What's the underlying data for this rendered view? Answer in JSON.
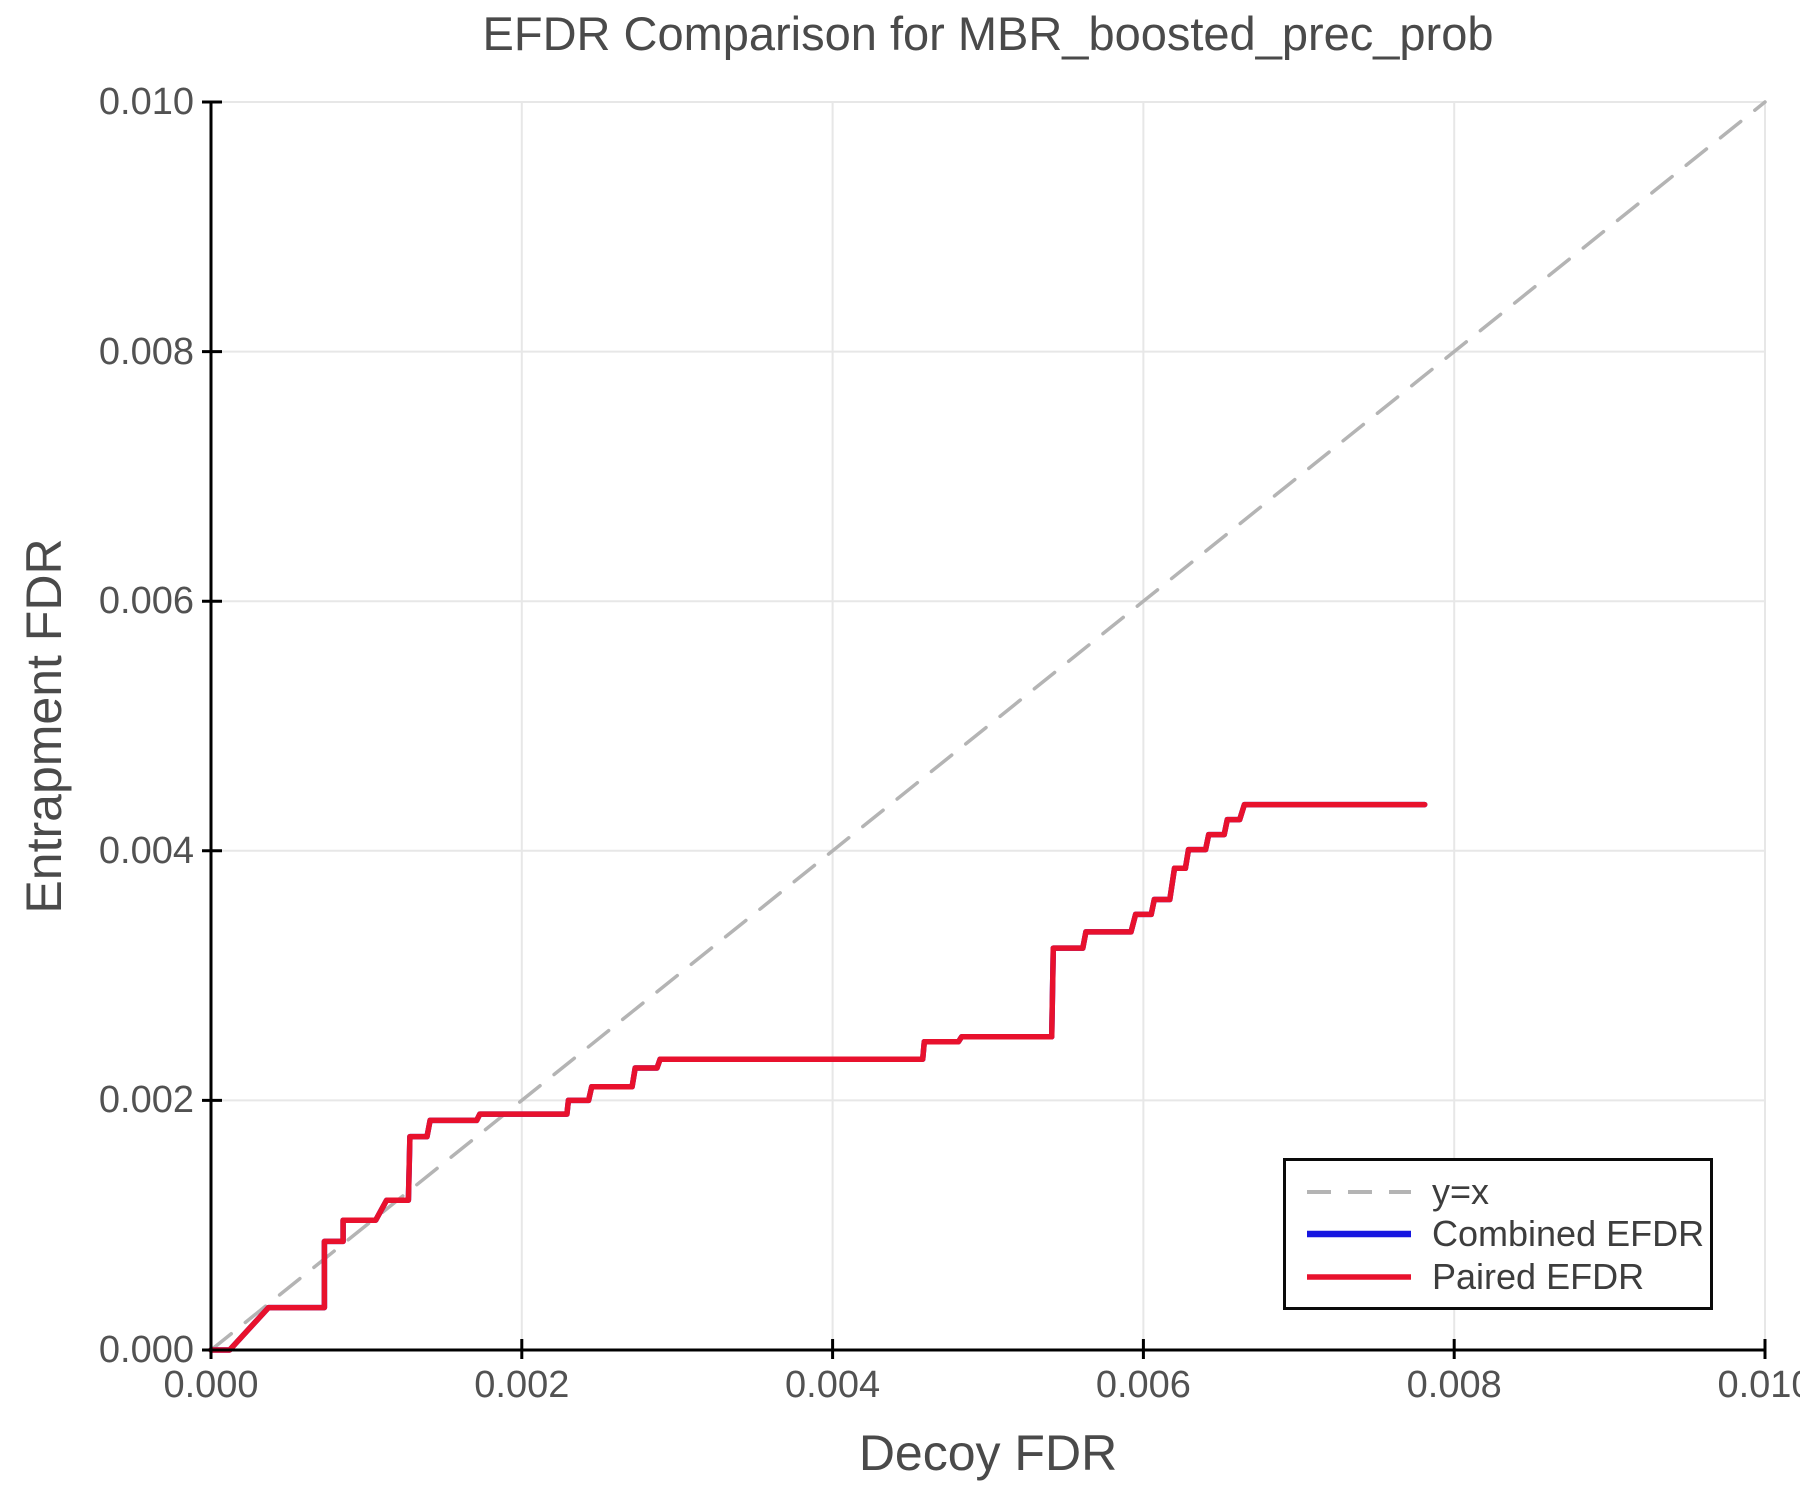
{
  "title": "EFDR Comparison for MBR_boosted_prec_prob",
  "axes": {
    "xlabel": "Decoy FDR",
    "ylabel": "Entrapment FDR"
  },
  "colors": {
    "identity_line": "#b4b4b4",
    "combined_efdr": "#1616e0",
    "paired_efdr": "#e8112d",
    "grid": "#e7e7e7",
    "spine": "#000000",
    "text": "#4a4a4a",
    "tick_text": "#525252"
  },
  "legend": {
    "items": [
      {
        "label": "y=x",
        "color": "#b4b4b4",
        "style": "dashed"
      },
      {
        "label": "Combined EFDR",
        "color": "#1616e0",
        "style": "solid"
      },
      {
        "label": "Paired EFDR",
        "color": "#e8112d",
        "style": "solid"
      }
    ]
  },
  "chart_data": {
    "type": "line",
    "title": "EFDR Comparison for MBR_boosted_prec_prob",
    "xlabel": "Decoy FDR",
    "ylabel": "Entrapment FDR",
    "xlim": [
      0.0,
      0.01
    ],
    "ylim": [
      0.0,
      0.01
    ],
    "grid": true,
    "legend_position": "lower right",
    "x_ticks": [
      0.0,
      0.002,
      0.004,
      0.006,
      0.008,
      0.01
    ],
    "y_ticks": [
      0.0,
      0.002,
      0.004,
      0.006,
      0.008,
      0.01
    ],
    "x_tick_labels": [
      "0.000",
      "0.002",
      "0.004",
      "0.006",
      "0.008",
      "0.010"
    ],
    "y_tick_labels": [
      "0.000",
      "0.002",
      "0.004",
      "0.006",
      "0.008",
      "0.010"
    ],
    "series": [
      {
        "name": "y=x",
        "style": "dashed",
        "color": "#b4b4b4",
        "line_width": 3.5,
        "points": [
          [
            0.0,
            0.0
          ],
          [
            0.01,
            0.01
          ]
        ]
      },
      {
        "name": "Combined EFDR",
        "style": "solid",
        "color": "#1616e0",
        "line_width": 5.5,
        "note": "not visibly distinct; coincides with Paired EFDR and is hidden beneath it",
        "points": [
          [
            0.0,
            0.0
          ],
          [
            0.00012,
            0.0
          ],
          [
            0.00037,
            0.00034
          ],
          [
            0.00073,
            0.00034
          ],
          [
            0.00073,
            0.00087
          ],
          [
            0.00085,
            0.00087
          ],
          [
            0.00085,
            0.00104
          ],
          [
            0.00106,
            0.00104
          ],
          [
            0.00113,
            0.0012
          ],
          [
            0.00127,
            0.0012
          ],
          [
            0.00128,
            0.00171
          ],
          [
            0.00139,
            0.00171
          ],
          [
            0.00141,
            0.00184
          ],
          [
            0.00171,
            0.00184
          ],
          [
            0.00173,
            0.00189
          ],
          [
            0.00229,
            0.00189
          ],
          [
            0.0023,
            0.002
          ],
          [
            0.00243,
            0.002
          ],
          [
            0.00245,
            0.00211
          ],
          [
            0.00271,
            0.00211
          ],
          [
            0.00273,
            0.00226
          ],
          [
            0.00287,
            0.00226
          ],
          [
            0.00289,
            0.00233
          ],
          [
            0.00458,
            0.00233
          ],
          [
            0.00459,
            0.00247
          ],
          [
            0.00481,
            0.00247
          ],
          [
            0.00483,
            0.00251
          ],
          [
            0.00541,
            0.00251
          ],
          [
            0.00542,
            0.00322
          ],
          [
            0.00561,
            0.00322
          ],
          [
            0.00563,
            0.00335
          ],
          [
            0.00592,
            0.00335
          ],
          [
            0.00595,
            0.00349
          ],
          [
            0.00605,
            0.00349
          ],
          [
            0.00607,
            0.00361
          ],
          [
            0.00617,
            0.00361
          ],
          [
            0.0062,
            0.00386
          ],
          [
            0.00627,
            0.00386
          ],
          [
            0.00629,
            0.00401
          ],
          [
            0.0064,
            0.00401
          ],
          [
            0.00642,
            0.00413
          ],
          [
            0.00652,
            0.00413
          ],
          [
            0.00654,
            0.00425
          ],
          [
            0.00662,
            0.00425
          ],
          [
            0.00665,
            0.00437
          ],
          [
            0.00781,
            0.00437
          ]
        ]
      },
      {
        "name": "Paired EFDR",
        "style": "solid",
        "color": "#e8112d",
        "line_width": 5.5,
        "points": [
          [
            0.0,
            0.0
          ],
          [
            0.00012,
            0.0
          ],
          [
            0.00037,
            0.00034
          ],
          [
            0.00073,
            0.00034
          ],
          [
            0.00073,
            0.00087
          ],
          [
            0.00085,
            0.00087
          ],
          [
            0.00085,
            0.00104
          ],
          [
            0.00106,
            0.00104
          ],
          [
            0.00113,
            0.0012
          ],
          [
            0.00127,
            0.0012
          ],
          [
            0.00128,
            0.00171
          ],
          [
            0.00139,
            0.00171
          ],
          [
            0.00141,
            0.00184
          ],
          [
            0.00171,
            0.00184
          ],
          [
            0.00173,
            0.00189
          ],
          [
            0.00229,
            0.00189
          ],
          [
            0.0023,
            0.002
          ],
          [
            0.00243,
            0.002
          ],
          [
            0.00245,
            0.00211
          ],
          [
            0.00271,
            0.00211
          ],
          [
            0.00273,
            0.00226
          ],
          [
            0.00287,
            0.00226
          ],
          [
            0.00289,
            0.00233
          ],
          [
            0.00458,
            0.00233
          ],
          [
            0.00459,
            0.00247
          ],
          [
            0.00481,
            0.00247
          ],
          [
            0.00483,
            0.00251
          ],
          [
            0.00541,
            0.00251
          ],
          [
            0.00542,
            0.00322
          ],
          [
            0.00561,
            0.00322
          ],
          [
            0.00563,
            0.00335
          ],
          [
            0.00592,
            0.00335
          ],
          [
            0.00595,
            0.00349
          ],
          [
            0.00605,
            0.00349
          ],
          [
            0.00607,
            0.00361
          ],
          [
            0.00617,
            0.00361
          ],
          [
            0.0062,
            0.00386
          ],
          [
            0.00627,
            0.00386
          ],
          [
            0.00629,
            0.00401
          ],
          [
            0.0064,
            0.00401
          ],
          [
            0.00642,
            0.00413
          ],
          [
            0.00652,
            0.00413
          ],
          [
            0.00654,
            0.00425
          ],
          [
            0.00662,
            0.00425
          ],
          [
            0.00665,
            0.00437
          ],
          [
            0.00781,
            0.00437
          ]
        ]
      }
    ]
  }
}
